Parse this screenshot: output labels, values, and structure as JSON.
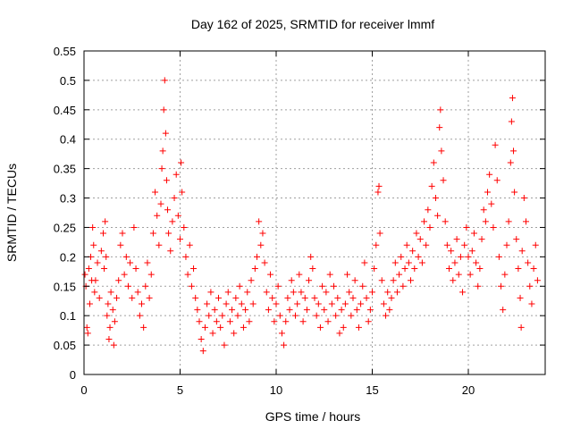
{
  "chart_data": {
    "type": "scatter",
    "title": "Day 162 of 2025, SRMTID for receiver lmmf",
    "xlabel": "GPS time / hours",
    "ylabel": "SRMTID / TECUs",
    "xlim": [
      0,
      24
    ],
    "ylim": [
      0,
      0.55
    ],
    "xticks": [
      0,
      5,
      10,
      15,
      20
    ],
    "xtick_labels": [
      "0",
      "5",
      "10",
      "15",
      "20"
    ],
    "yticks": [
      0,
      0.05,
      0.1,
      0.15,
      0.2,
      0.25,
      0.3,
      0.35,
      0.4,
      0.45,
      0.5,
      0.55
    ],
    "ytick_labels": [
      "0",
      "0.05",
      "0.1",
      "0.15",
      "0.2",
      "0.25",
      "0.3",
      "0.35",
      "0.4",
      "0.45",
      "0.5",
      "0.55"
    ],
    "grid": true,
    "marker": "plus",
    "color": "#ff0000",
    "series": [
      {
        "name": "SRMTID",
        "points": [
          [
            0.05,
            0.17
          ],
          [
            0.1,
            0.15
          ],
          [
            0.15,
            0.08
          ],
          [
            0.2,
            0.07
          ],
          [
            0.25,
            0.18
          ],
          [
            0.3,
            0.12
          ],
          [
            0.35,
            0.2
          ],
          [
            0.4,
            0.16
          ],
          [
            0.45,
            0.25
          ],
          [
            0.5,
            0.22
          ],
          [
            0.55,
            0.14
          ],
          [
            0.6,
            0.16
          ],
          [
            0.7,
            0.19
          ],
          [
            0.8,
            0.13
          ],
          [
            0.9,
            0.21
          ],
          [
            1.0,
            0.24
          ],
          [
            1.05,
            0.18
          ],
          [
            1.1,
            0.26
          ],
          [
            1.15,
            0.2
          ],
          [
            1.2,
            0.1
          ],
          [
            1.25,
            0.12
          ],
          [
            1.3,
            0.06
          ],
          [
            1.35,
            0.08
          ],
          [
            1.4,
            0.14
          ],
          [
            1.5,
            0.11
          ],
          [
            1.55,
            0.05
          ],
          [
            1.6,
            0.09
          ],
          [
            1.7,
            0.13
          ],
          [
            1.8,
            0.16
          ],
          [
            1.9,
            0.22
          ],
          [
            2.0,
            0.24
          ],
          [
            2.1,
            0.17
          ],
          [
            2.2,
            0.2
          ],
          [
            2.3,
            0.15
          ],
          [
            2.4,
            0.19
          ],
          [
            2.5,
            0.13
          ],
          [
            2.6,
            0.25
          ],
          [
            2.7,
            0.18
          ],
          [
            2.8,
            0.14
          ],
          [
            2.9,
            0.1
          ],
          [
            3.0,
            0.12
          ],
          [
            3.1,
            0.08
          ],
          [
            3.2,
            0.15
          ],
          [
            3.3,
            0.19
          ],
          [
            3.4,
            0.13
          ],
          [
            3.5,
            0.17
          ],
          [
            3.6,
            0.24
          ],
          [
            3.7,
            0.31
          ],
          [
            3.8,
            0.27
          ],
          [
            3.9,
            0.22
          ],
          [
            4.0,
            0.29
          ],
          [
            4.05,
            0.35
          ],
          [
            4.1,
            0.38
          ],
          [
            4.15,
            0.45
          ],
          [
            4.2,
            0.5
          ],
          [
            4.25,
            0.41
          ],
          [
            4.3,
            0.33
          ],
          [
            4.35,
            0.28
          ],
          [
            4.4,
            0.24
          ],
          [
            4.5,
            0.21
          ],
          [
            4.6,
            0.26
          ],
          [
            4.7,
            0.3
          ],
          [
            4.8,
            0.34
          ],
          [
            4.9,
            0.27
          ],
          [
            5.0,
            0.23
          ],
          [
            5.05,
            0.36
          ],
          [
            5.1,
            0.31
          ],
          [
            5.2,
            0.25
          ],
          [
            5.3,
            0.2
          ],
          [
            5.4,
            0.17
          ],
          [
            5.5,
            0.22
          ],
          [
            5.6,
            0.15
          ],
          [
            5.7,
            0.18
          ],
          [
            5.8,
            0.13
          ],
          [
            5.9,
            0.11
          ],
          [
            6.0,
            0.09
          ],
          [
            6.1,
            0.06
          ],
          [
            6.2,
            0.04
          ],
          [
            6.3,
            0.08
          ],
          [
            6.4,
            0.12
          ],
          [
            6.5,
            0.1
          ],
          [
            6.6,
            0.14
          ],
          [
            6.7,
            0.07
          ],
          [
            6.8,
            0.11
          ],
          [
            6.9,
            0.09
          ],
          [
            7.0,
            0.13
          ],
          [
            7.1,
            0.08
          ],
          [
            7.2,
            0.1
          ],
          [
            7.3,
            0.05
          ],
          [
            7.4,
            0.12
          ],
          [
            7.5,
            0.14
          ],
          [
            7.6,
            0.09
          ],
          [
            7.7,
            0.11
          ],
          [
            7.8,
            0.07
          ],
          [
            7.9,
            0.13
          ],
          [
            8.0,
            0.1
          ],
          [
            8.1,
            0.15
          ],
          [
            8.2,
            0.12
          ],
          [
            8.3,
            0.08
          ],
          [
            8.4,
            0.11
          ],
          [
            8.5,
            0.14
          ],
          [
            8.6,
            0.09
          ],
          [
            8.7,
            0.16
          ],
          [
            8.8,
            0.12
          ],
          [
            8.9,
            0.18
          ],
          [
            9.0,
            0.2
          ],
          [
            9.1,
            0.26
          ],
          [
            9.2,
            0.22
          ],
          [
            9.3,
            0.24
          ],
          [
            9.4,
            0.19
          ],
          [
            9.5,
            0.14
          ],
          [
            9.6,
            0.11
          ],
          [
            9.7,
            0.17
          ],
          [
            9.8,
            0.13
          ],
          [
            9.9,
            0.09
          ],
          [
            10.0,
            0.12
          ],
          [
            10.1,
            0.15
          ],
          [
            10.2,
            0.1
          ],
          [
            10.3,
            0.07
          ],
          [
            10.4,
            0.05
          ],
          [
            10.5,
            0.09
          ],
          [
            10.6,
            0.13
          ],
          [
            10.7,
            0.11
          ],
          [
            10.8,
            0.16
          ],
          [
            10.9,
            0.14
          ],
          [
            11.0,
            0.1
          ],
          [
            11.1,
            0.12
          ],
          [
            11.2,
            0.17
          ],
          [
            11.3,
            0.14
          ],
          [
            11.4,
            0.09
          ],
          [
            11.5,
            0.13
          ],
          [
            11.6,
            0.11
          ],
          [
            11.7,
            0.16
          ],
          [
            11.8,
            0.2
          ],
          [
            11.9,
            0.18
          ],
          [
            12.0,
            0.13
          ],
          [
            12.1,
            0.1
          ],
          [
            12.2,
            0.12
          ],
          [
            12.3,
            0.08
          ],
          [
            12.4,
            0.15
          ],
          [
            12.5,
            0.11
          ],
          [
            12.6,
            0.14
          ],
          [
            12.7,
            0.09
          ],
          [
            12.8,
            0.17
          ],
          [
            12.9,
            0.12
          ],
          [
            13.0,
            0.15
          ],
          [
            13.1,
            0.1
          ],
          [
            13.2,
            0.13
          ],
          [
            13.3,
            0.07
          ],
          [
            13.4,
            0.11
          ],
          [
            13.5,
            0.08
          ],
          [
            13.6,
            0.12
          ],
          [
            13.7,
            0.17
          ],
          [
            13.8,
            0.14
          ],
          [
            13.9,
            0.1
          ],
          [
            14.0,
            0.13
          ],
          [
            14.1,
            0.16
          ],
          [
            14.2,
            0.11
          ],
          [
            14.3,
            0.08
          ],
          [
            14.4,
            0.12
          ],
          [
            14.5,
            0.15
          ],
          [
            14.6,
            0.19
          ],
          [
            14.7,
            0.13
          ],
          [
            14.8,
            0.09
          ],
          [
            14.9,
            0.11
          ],
          [
            15.0,
            0.14
          ],
          [
            15.1,
            0.18
          ],
          [
            15.2,
            0.22
          ],
          [
            15.3,
            0.31
          ],
          [
            15.35,
            0.32
          ],
          [
            15.4,
            0.24
          ],
          [
            15.5,
            0.16
          ],
          [
            15.6,
            0.12
          ],
          [
            15.7,
            0.1
          ],
          [
            15.8,
            0.14
          ],
          [
            15.9,
            0.11
          ],
          [
            16.0,
            0.13
          ],
          [
            16.1,
            0.16
          ],
          [
            16.2,
            0.19
          ],
          [
            16.3,
            0.14
          ],
          [
            16.4,
            0.17
          ],
          [
            16.5,
            0.2
          ],
          [
            16.6,
            0.15
          ],
          [
            16.7,
            0.18
          ],
          [
            16.8,
            0.22
          ],
          [
            16.9,
            0.19
          ],
          [
            17.0,
            0.16
          ],
          [
            17.1,
            0.21
          ],
          [
            17.2,
            0.18
          ],
          [
            17.3,
            0.24
          ],
          [
            17.4,
            0.2
          ],
          [
            17.5,
            0.23
          ],
          [
            17.6,
            0.19
          ],
          [
            17.7,
            0.26
          ],
          [
            17.8,
            0.22
          ],
          [
            17.9,
            0.28
          ],
          [
            18.0,
            0.25
          ],
          [
            18.1,
            0.32
          ],
          [
            18.2,
            0.36
          ],
          [
            18.3,
            0.3
          ],
          [
            18.4,
            0.27
          ],
          [
            18.5,
            0.42
          ],
          [
            18.55,
            0.45
          ],
          [
            18.6,
            0.38
          ],
          [
            18.7,
            0.33
          ],
          [
            18.8,
            0.26
          ],
          [
            18.9,
            0.22
          ],
          [
            19.0,
            0.18
          ],
          [
            19.1,
            0.21
          ],
          [
            19.2,
            0.16
          ],
          [
            19.3,
            0.19
          ],
          [
            19.4,
            0.23
          ],
          [
            19.5,
            0.17
          ],
          [
            19.6,
            0.2
          ],
          [
            19.7,
            0.14
          ],
          [
            19.8,
            0.22
          ],
          [
            19.9,
            0.25
          ],
          [
            20.0,
            0.2
          ],
          [
            20.1,
            0.17
          ],
          [
            20.2,
            0.21
          ],
          [
            20.3,
            0.24
          ],
          [
            20.4,
            0.19
          ],
          [
            20.5,
            0.15
          ],
          [
            20.6,
            0.18
          ],
          [
            20.7,
            0.23
          ],
          [
            20.8,
            0.28
          ],
          [
            20.9,
            0.26
          ],
          [
            21.0,
            0.31
          ],
          [
            21.1,
            0.34
          ],
          [
            21.2,
            0.29
          ],
          [
            21.3,
            0.25
          ],
          [
            21.4,
            0.39
          ],
          [
            21.5,
            0.33
          ],
          [
            21.6,
            0.2
          ],
          [
            21.7,
            0.15
          ],
          [
            21.8,
            0.11
          ],
          [
            21.9,
            0.17
          ],
          [
            22.0,
            0.22
          ],
          [
            22.1,
            0.26
          ],
          [
            22.2,
            0.36
          ],
          [
            22.25,
            0.43
          ],
          [
            22.3,
            0.47
          ],
          [
            22.35,
            0.38
          ],
          [
            22.4,
            0.31
          ],
          [
            22.5,
            0.23
          ],
          [
            22.6,
            0.18
          ],
          [
            22.7,
            0.13
          ],
          [
            22.75,
            0.08
          ],
          [
            22.8,
            0.21
          ],
          [
            22.9,
            0.3
          ],
          [
            23.0,
            0.26
          ],
          [
            23.1,
            0.19
          ],
          [
            23.2,
            0.15
          ],
          [
            23.3,
            0.12
          ],
          [
            23.4,
            0.18
          ],
          [
            23.5,
            0.22
          ],
          [
            23.6,
            0.16
          ]
        ]
      }
    ]
  }
}
